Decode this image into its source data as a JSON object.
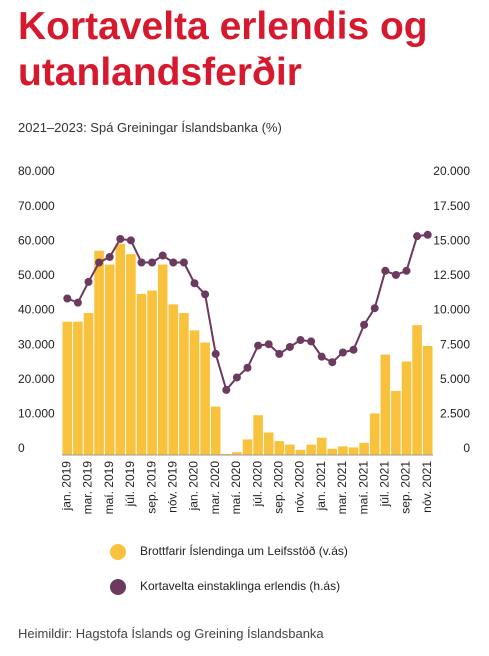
{
  "chart_data": {
    "type": "bar-line",
    "title": "Kortavelta erlendis og utanlandsferðir",
    "subtitle": "2021–2023: Spá Greiningar Íslandsbanka (%)",
    "source": "Heimildir: Hagstofa Íslands og Greining Íslandsbanka",
    "categories": [
      "jan. 2019",
      null,
      "mar. 2019",
      null,
      "maí. 2019",
      null,
      "júl. 2019",
      null,
      "sep. 2019",
      null,
      "nóv. 2019",
      null,
      "jan. 2020",
      null,
      "mar. 2020",
      null,
      "maí. 2020",
      null,
      "júl. 2020",
      null,
      "sep. 2020",
      null,
      "nóv. 2020",
      null,
      "jan. 2021",
      null,
      "mar. 2021",
      null,
      "maí. 2021",
      null,
      "júl. 2021",
      null,
      "sep. 2021",
      null,
      "nóv. 2021"
    ],
    "series": [
      {
        "name": "Brottfarir Íslendinga um Leifsstöð (v.ás)",
        "color": "#f9c23c",
        "kind": "bar",
        "values": [
          38500,
          38500,
          41000,
          59000,
          55000,
          61000,
          58000,
          46500,
          47500,
          55000,
          43500,
          41000,
          36000,
          32500,
          14000,
          300,
          800,
          4500,
          11500,
          6500,
          4000,
          3000,
          1500,
          3000,
          5000,
          1800,
          2500,
          2200,
          3500,
          12000,
          29000,
          18500,
          27000,
          37500,
          31500
        ]
      },
      {
        "name": "Kortavelta einstaklinga erlendis (h.ás)",
        "color": "#6b3a5e",
        "kind": "line",
        "axis": "y2",
        "values": [
          11300,
          11000,
          12500,
          13900,
          14300,
          15600,
          15500,
          13900,
          13900,
          14400,
          13900,
          13900,
          12400,
          11600,
          7300,
          4700,
          5600,
          6300,
          7900,
          8000,
          7300,
          7800,
          8300,
          8200,
          7100,
          6700,
          7400,
          7600,
          9400,
          10600,
          13300,
          13000,
          13300,
          15800,
          15900
        ]
      }
    ],
    "ylim": [
      0,
      80000
    ],
    "yticks": [
      0,
      {
        "value": 10000,
        "label": "10.000"
      },
      {
        "value": 20000,
        "label": "20.000"
      },
      {
        "value": 30000,
        "label": "30.000"
      },
      {
        "value": 40000,
        "label": "40.000"
      },
      {
        "value": 50000,
        "label": "50.000"
      },
      {
        "value": 60000,
        "label": "60.000"
      },
      {
        "value": 70000,
        "label": "70.000"
      },
      {
        "value": 80000,
        "label": "80.000"
      }
    ],
    "y2lim": [
      0,
      20000
    ],
    "y2ticks": [
      0,
      {
        "value": 2500,
        "label": "2.500"
      },
      {
        "value": 5000,
        "label": "5.000"
      },
      {
        "value": 7500,
        "label": "7.500"
      },
      {
        "value": 10000,
        "label": "10.000"
      },
      {
        "value": 12500,
        "label": "12.500"
      },
      {
        "value": 15000,
        "label": "15.000"
      },
      {
        "value": 17500,
        "label": "17.500"
      },
      {
        "value": 20000,
        "label": "20.000"
      }
    ],
    "grid": false
  }
}
